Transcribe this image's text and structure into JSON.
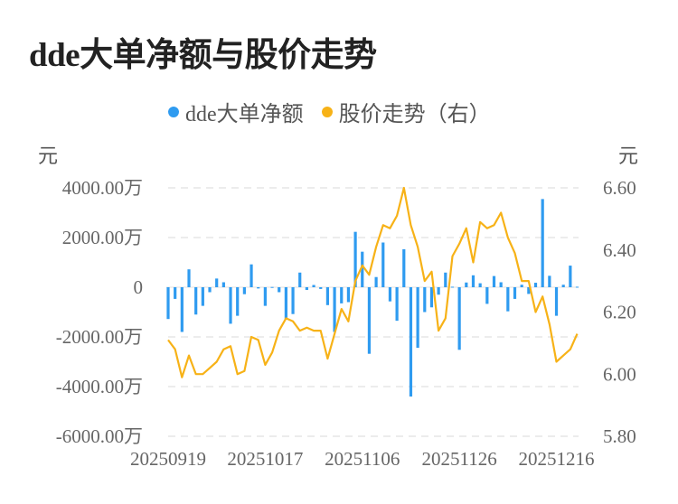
{
  "title": "dde大单净额与股价走势",
  "colors": {
    "bar": "#2f9bf0",
    "line": "#f7b217",
    "grid": "#e6e6e6"
  },
  "chart_data": {
    "type": "bar+line",
    "title": "dde大单净额与股价走势",
    "legend": [
      {
        "name": "dde大单净额",
        "color": "#2f9bf0"
      },
      {
        "name": "股价走势（右）",
        "color": "#f7b217"
      }
    ],
    "legend_position": "top-center",
    "y_left": {
      "unit": "元",
      "range": [
        -6000,
        4000
      ],
      "ticks": [
        4000,
        2000,
        0,
        -2000,
        -4000,
        -6000
      ],
      "tick_labels": [
        "4000.00万",
        "2000.00万",
        "0",
        "-2000.00万",
        "-4000.00万",
        "-6000.00万"
      ]
    },
    "y_right": {
      "unit": "元",
      "range": [
        5.8,
        6.6
      ],
      "ticks": [
        6.6,
        6.4,
        6.2,
        6.0,
        5.8
      ],
      "tick_labels": [
        "6.60",
        "6.40",
        "6.20",
        "6.00",
        "5.80"
      ]
    },
    "x_tick_labels": [
      {
        "label": "20250919",
        "index": 0
      },
      {
        "label": "20251017",
        "index": 14
      },
      {
        "label": "20251106",
        "index": 28
      },
      {
        "label": "20251126",
        "index": 42
      },
      {
        "label": "20251216",
        "index": 56
      }
    ],
    "grid": true,
    "count": 60,
    "series": [
      {
        "name": "dde大单净额",
        "type": "bar",
        "unit": "万元",
        "values": [
          -1280,
          -470,
          -1800,
          720,
          -1100,
          -750,
          -200,
          350,
          200,
          -1470,
          -1150,
          -280,
          920,
          -50,
          -750,
          10,
          -200,
          -1280,
          -1080,
          590,
          -110,
          90,
          -70,
          -720,
          -1800,
          -650,
          -600,
          2230,
          1430,
          -2680,
          410,
          1800,
          -570,
          -1350,
          1530,
          -4400,
          -2440,
          -1000,
          -810,
          -300,
          590,
          20,
          -2520,
          190,
          480,
          160,
          -670,
          450,
          200,
          -970,
          -470,
          100,
          -270,
          180,
          3550,
          460,
          -1150,
          100,
          870,
          20
        ]
      },
      {
        "name": "股价走势（右）",
        "type": "line",
        "values": [
          6.11,
          6.08,
          5.99,
          6.06,
          6.0,
          6.0,
          6.02,
          6.04,
          6.08,
          6.09,
          6.0,
          6.01,
          6.12,
          6.11,
          6.03,
          6.07,
          6.14,
          6.18,
          6.17,
          6.14,
          6.15,
          6.14,
          6.14,
          6.05,
          6.13,
          6.21,
          6.17,
          6.3,
          6.35,
          6.32,
          6.41,
          6.48,
          6.47,
          6.51,
          6.6,
          6.48,
          6.41,
          6.3,
          6.33,
          6.14,
          6.18,
          6.38,
          6.42,
          6.47,
          6.36,
          6.49,
          6.47,
          6.48,
          6.52,
          6.44,
          6.39,
          6.3,
          6.3,
          6.2,
          6.25,
          6.16,
          6.04,
          6.06,
          6.08,
          6.13
        ]
      }
    ]
  }
}
